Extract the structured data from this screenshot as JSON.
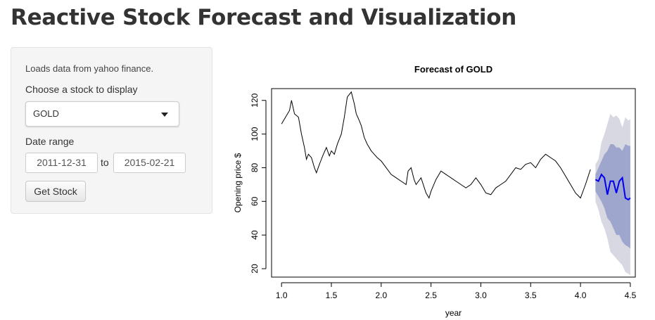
{
  "header": {
    "title": "Reactive Stock Forecast and Visualization"
  },
  "sidebar": {
    "note": "Loads data from yahoo finance.",
    "stock_label": "Choose a stock to display",
    "stock_value": "GOLD",
    "date_label": "Date range",
    "date_start": "2011-12-31",
    "date_sep": "to",
    "date_end": "2015-02-21",
    "button_label": "Get Stock"
  },
  "chart_data": {
    "type": "line",
    "title": "Forecast of  GOLD",
    "xlabel": "year",
    "ylabel": "Opening price $",
    "xlim": [
      0.9,
      4.55
    ],
    "ylim": [
      15,
      127
    ],
    "xticks": [
      1.0,
      1.5,
      2.0,
      2.5,
      3.0,
      3.5,
      4.0,
      4.5
    ],
    "xtick_labels": [
      "1.0",
      "1.5",
      "2.0",
      "2.5",
      "3.0",
      "3.5",
      "4.0",
      "4.5"
    ],
    "yticks": [
      20,
      40,
      60,
      80,
      100,
      120
    ],
    "ytick_labels": [
      "20",
      "40",
      "60",
      "80",
      "100",
      "120"
    ],
    "colors": {
      "history": "#000000",
      "forecast": "#0000ee",
      "band95": "#d8d8e2",
      "band80": "#9fa6cd"
    },
    "series": [
      {
        "role": "history",
        "x": [
          1.0,
          1.04,
          1.08,
          1.1,
          1.13,
          1.17,
          1.2,
          1.23,
          1.25,
          1.27,
          1.3,
          1.33,
          1.35,
          1.38,
          1.4,
          1.42,
          1.45,
          1.48,
          1.5,
          1.53,
          1.56,
          1.6,
          1.63,
          1.66,
          1.7,
          1.73,
          1.75,
          1.78,
          1.8,
          1.83,
          1.86,
          1.9,
          1.93,
          1.96,
          2.0,
          2.05,
          2.1,
          2.15,
          2.2,
          2.25,
          2.27,
          2.3,
          2.33,
          2.35,
          2.4,
          2.45,
          2.48,
          2.5,
          2.55,
          2.6,
          2.65,
          2.7,
          2.75,
          2.8,
          2.85,
          2.9,
          2.95,
          3.0,
          3.05,
          3.1,
          3.15,
          3.2,
          3.25,
          3.3,
          3.35,
          3.4,
          3.45,
          3.5,
          3.55,
          3.6,
          3.65,
          3.7,
          3.75,
          3.8,
          3.85,
          3.9,
          3.95,
          4.0,
          4.05,
          4.1
        ],
        "y": [
          106,
          110,
          114,
          120,
          112,
          110,
          100,
          92,
          85,
          88,
          86,
          80,
          77,
          82,
          85,
          88,
          92,
          87,
          90,
          88,
          94,
          100,
          110,
          122,
          125,
          118,
          112,
          108,
          105,
          98,
          94,
          90,
          88,
          86,
          84,
          80,
          76,
          74,
          72,
          70,
          78,
          80,
          73,
          70,
          74,
          65,
          62,
          66,
          73,
          78,
          76,
          74,
          72,
          70,
          68,
          70,
          74,
          70,
          65,
          64,
          68,
          70,
          72,
          76,
          80,
          79,
          82,
          83,
          80,
          85,
          88,
          86,
          84,
          80,
          75,
          70,
          65,
          62,
          70,
          79
        ]
      },
      {
        "role": "forecast",
        "x": [
          4.15,
          4.18,
          4.21,
          4.24,
          4.27,
          4.3,
          4.33,
          4.36,
          4.39,
          4.42,
          4.45,
          4.48,
          4.5
        ],
        "y": [
          73,
          72,
          76,
          74,
          64,
          72,
          72,
          65,
          72,
          74,
          62,
          61,
          62
        ]
      }
    ],
    "band95": {
      "upper": [
        82,
        85,
        95,
        100,
        106,
        112,
        110,
        111,
        109,
        104,
        110,
        108,
        109
      ],
      "lower": [
        60,
        55,
        48,
        44,
        38,
        30,
        28,
        26,
        24,
        22,
        18,
        17,
        16
      ]
    },
    "band80": {
      "upper": [
        76,
        80,
        84,
        88,
        90,
        94,
        94,
        92,
        92,
        90,
        94,
        93,
        93
      ],
      "lower": [
        66,
        63,
        60,
        56,
        50,
        48,
        44,
        40,
        40,
        36,
        34,
        33,
        32
      ]
    }
  }
}
